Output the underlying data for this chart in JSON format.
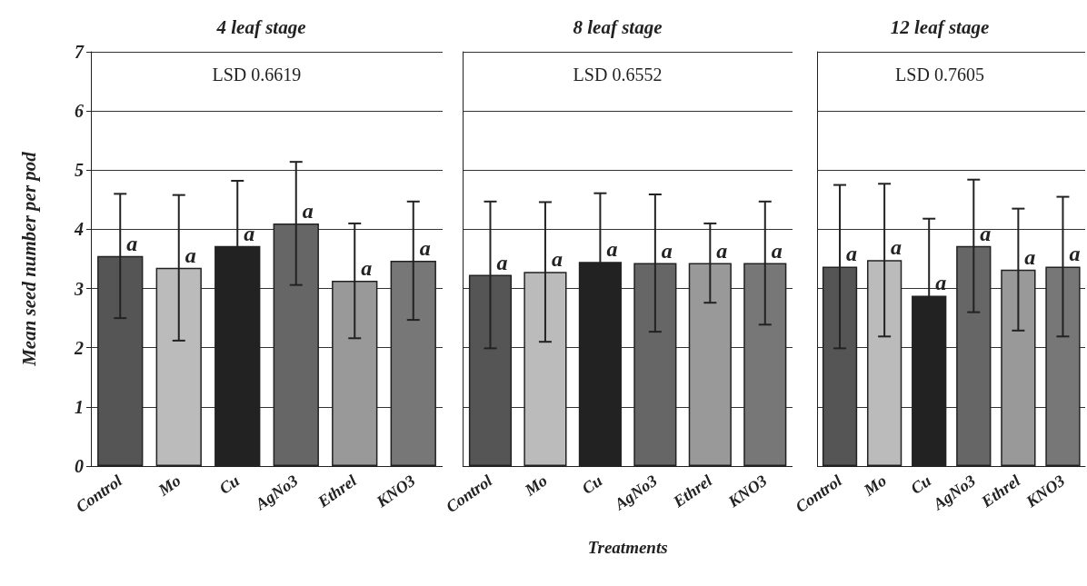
{
  "chart_data": [
    {
      "type": "bar",
      "title": "4 leaf stage",
      "ylabel": "Mean seed number per pod",
      "annotations": [
        "LSD 0.6619"
      ],
      "categories": [
        "Control",
        "Mo",
        "Cu",
        "AgNo3",
        "Ethrel",
        "KNO3"
      ],
      "values": [
        3.55,
        3.35,
        3.72,
        4.1,
        3.13,
        3.47
      ],
      "errors": [
        1.05,
        1.23,
        1.1,
        1.04,
        0.97,
        1.0
      ],
      "value_labels": [
        "a",
        "a",
        "a",
        "a",
        "a",
        "a"
      ],
      "colors": [
        "#555555",
        "#bbbbbb",
        "#222222",
        "#666666",
        "#999999",
        "#777777"
      ],
      "ylim": [
        0,
        7
      ],
      "yticks": [
        0,
        1,
        2,
        3,
        4,
        5,
        6,
        7
      ],
      "grid": "y"
    },
    {
      "type": "bar",
      "title": "8 leaf stage",
      "xlabel": "Treatments",
      "annotations": [
        "LSD 0.6552"
      ],
      "categories": [
        "Control",
        "Mo",
        "Cu",
        "AgNo3",
        "Ethrel",
        "KNO3"
      ],
      "values": [
        3.23,
        3.28,
        3.45,
        3.43,
        3.43,
        3.43
      ],
      "errors": [
        1.24,
        1.18,
        1.16,
        1.16,
        0.67,
        1.04
      ],
      "value_labels": [
        "a",
        "a",
        "a",
        "a",
        "a",
        "a"
      ],
      "colors": [
        "#555555",
        "#bbbbbb",
        "#222222",
        "#666666",
        "#999999",
        "#777777"
      ],
      "ylim": [
        0,
        7
      ],
      "yticks": [
        0,
        1,
        2,
        3,
        4,
        5,
        6,
        7
      ],
      "grid": "y",
      "tick_labels": "x"
    },
    {
      "type": "bar",
      "title": "12 leaf stage",
      "annotations": [
        "LSD 0.7605"
      ],
      "categories": [
        "Control",
        "Mo",
        "Cu",
        "AgNo3",
        "Ethrel",
        "KNO3"
      ],
      "values": [
        3.37,
        3.48,
        2.88,
        3.72,
        3.32,
        3.37
      ],
      "errors": [
        1.38,
        1.29,
        1.3,
        1.12,
        1.03,
        1.18
      ],
      "value_labels": [
        "a",
        "a",
        "a",
        "a",
        "a",
        "a"
      ],
      "colors": [
        "#555555",
        "#bbbbbb",
        "#222222",
        "#666666",
        "#999999",
        "#777777"
      ],
      "ylim": [
        0,
        7
      ],
      "yticks": [
        0,
        1,
        2,
        3,
        4,
        5,
        6,
        7
      ],
      "grid": "y",
      "tick_labels": "x"
    }
  ]
}
